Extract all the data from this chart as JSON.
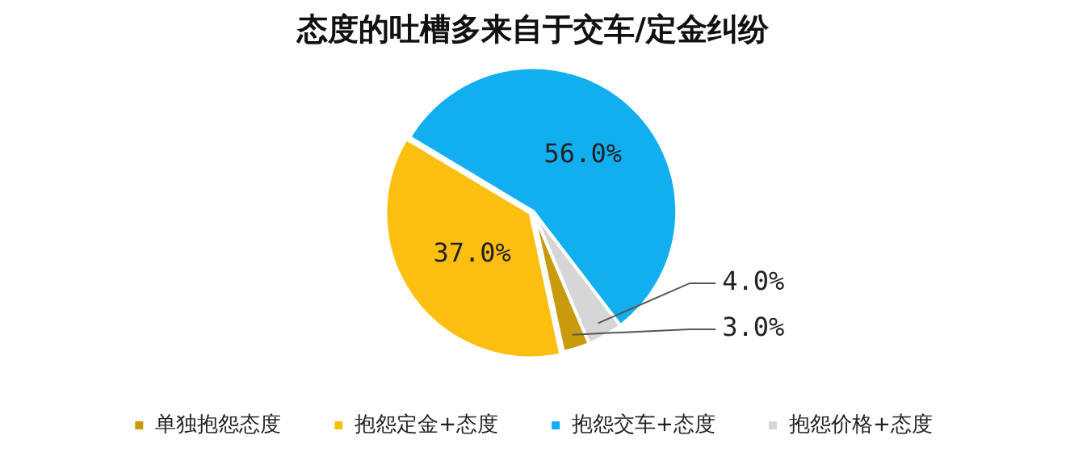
{
  "chart_data": {
    "type": "pie",
    "title": "态度的吐槽多来自于交车/定金纠纷",
    "categories": [
      "单独抱怨态度",
      "抱怨定金+态度",
      "抱怨交车+态度",
      "抱怨价格+态度"
    ],
    "values": [
      3.0,
      37.0,
      56.0,
      4.0
    ],
    "colors": [
      "#c99a0c",
      "#fdbf0f",
      "#12aff0",
      "#d6d6d6"
    ],
    "value_labels": [
      "3.0%",
      "37.0%",
      "56.0%",
      "4.0%"
    ],
    "legend": "bottom"
  }
}
